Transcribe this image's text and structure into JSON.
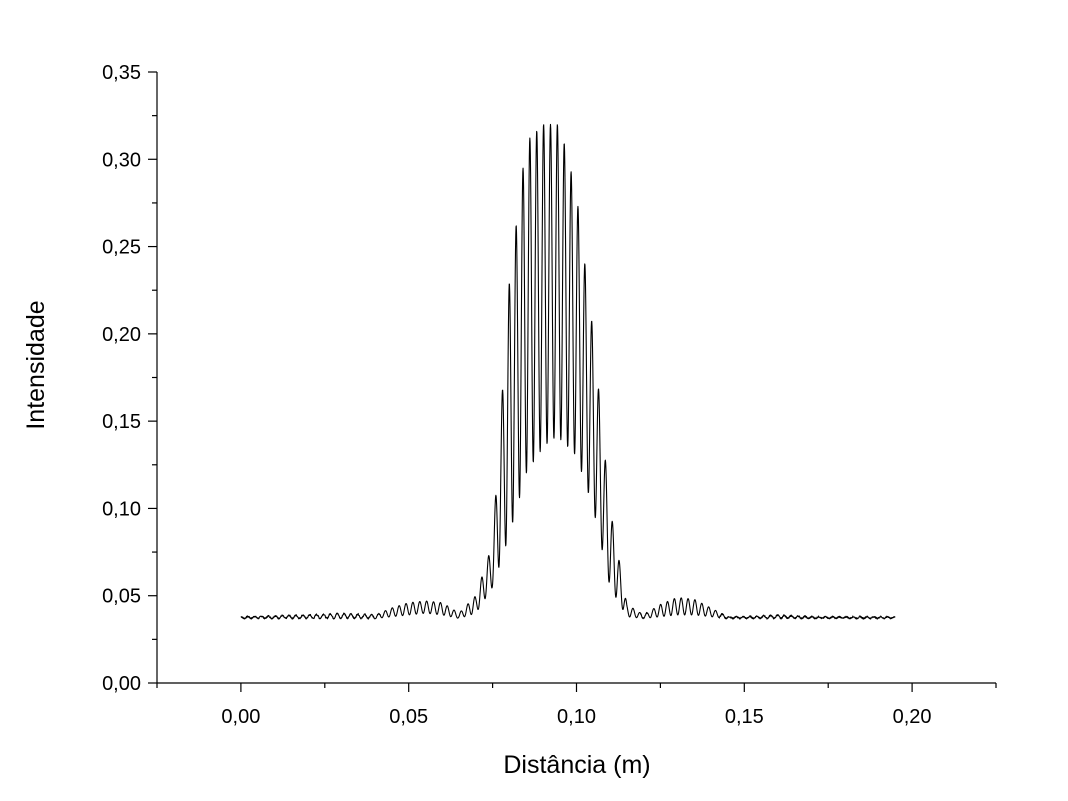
{
  "chart_data": {
    "type": "line",
    "title": "",
    "xlabel": "Distância (m)",
    "ylabel": "Intensidade",
    "xlim": [
      -0.025,
      0.225
    ],
    "ylim": [
      0.0,
      0.35
    ],
    "x_ticks": [
      "0,00",
      "0,05",
      "0,10",
      "0,15",
      "0,20"
    ],
    "y_ticks": [
      "0,00",
      "0,05",
      "0,10",
      "0,15",
      "0,20",
      "0,25",
      "0,30",
      "0,35"
    ],
    "x_tick_values": [
      0.0,
      0.05,
      0.1,
      0.15,
      0.2
    ],
    "y_tick_values": [
      0.0,
      0.05,
      0.1,
      0.15,
      0.2,
      0.25,
      0.3,
      0.35
    ],
    "grid": false,
    "line_color": "#000000",
    "series": [
      {
        "x_range": [
          0.0,
          0.195
        ],
        "description_points": {
          "x": [
            0.0,
            0.02,
            0.03,
            0.04,
            0.045,
            0.05,
            0.055,
            0.06,
            0.065,
            0.07,
            0.075,
            0.08,
            0.085,
            0.09,
            0.093,
            0.095,
            0.1,
            0.105,
            0.11,
            0.115,
            0.12,
            0.125,
            0.13,
            0.135,
            0.14,
            0.145,
            0.15,
            0.16,
            0.17,
            0.18,
            0.195
          ],
          "y_max": [
            0.038,
            0.039,
            0.04,
            0.039,
            0.043,
            0.046,
            0.047,
            0.046,
            0.04,
            0.05,
            0.08,
            0.23,
            0.31,
            0.32,
            0.32,
            0.32,
            0.28,
            0.2,
            0.1,
            0.045,
            0.039,
            0.045,
            0.049,
            0.048,
            0.043,
            0.038,
            0.038,
            0.039,
            0.038,
            0.038,
            0.038
          ],
          "y_min": [
            0.037,
            0.037,
            0.037,
            0.037,
            0.038,
            0.039,
            0.04,
            0.039,
            0.037,
            0.04,
            0.055,
            0.085,
            0.12,
            0.135,
            0.14,
            0.14,
            0.13,
            0.1,
            0.055,
            0.038,
            0.037,
            0.038,
            0.039,
            0.039,
            0.038,
            0.037,
            0.037,
            0.037,
            0.037,
            0.037,
            0.037
          ]
        }
      }
    ]
  }
}
